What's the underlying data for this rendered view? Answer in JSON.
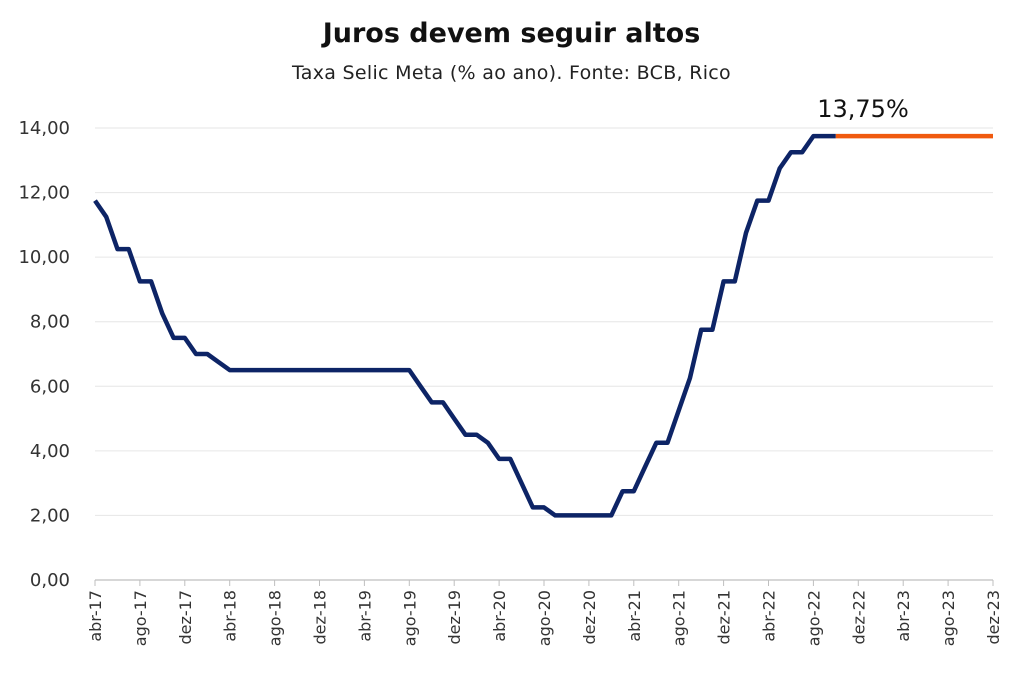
{
  "chart_data": {
    "type": "line",
    "title": "Juros devem seguir altos",
    "subtitle": "Taxa Selic Meta (% ao ano). Fonte: BCB, Rico",
    "ylim": [
      0,
      14
    ],
    "yticks": [
      "0,00",
      "2,00",
      "4,00",
      "6,00",
      "8,00",
      "10,00",
      "12,00",
      "14,00"
    ],
    "ytick_values": [
      0,
      2,
      4,
      6,
      8,
      10,
      12,
      14
    ],
    "xticks": [
      "abr-17",
      "ago-17",
      "dez-17",
      "abr-18",
      "ago-18",
      "dez-18",
      "abr-19",
      "ago-19",
      "dez-19",
      "abr-20",
      "ago-20",
      "dez-20",
      "abr-21",
      "ago-21",
      "dez-21",
      "abr-22",
      "ago-22",
      "dez-22",
      "abr-23",
      "ago-23",
      "dez-23"
    ],
    "grid": true,
    "annotation": "13,75%",
    "colors": {
      "historical": "#0d2466",
      "projection": "#f05a0f",
      "grid": "#e6e6e6",
      "axis": "#bfbfbf"
    },
    "series": [
      {
        "x": [
          "2017-04",
          "2017-05",
          "2017-06",
          "2017-07",
          "2017-08",
          "2017-09",
          "2017-10",
          "2017-11",
          "2017-12",
          "2018-01",
          "2018-02",
          "2018-03",
          "2018-04",
          "2018-05",
          "2018-06",
          "2018-07",
          "2018-08",
          "2018-09",
          "2018-10",
          "2018-11",
          "2018-12",
          "2019-01",
          "2019-02",
          "2019-03",
          "2019-04",
          "2019-05",
          "2019-06",
          "2019-07",
          "2019-08",
          "2019-09",
          "2019-10",
          "2019-11",
          "2019-12",
          "2020-01",
          "2020-02",
          "2020-03",
          "2020-04",
          "2020-05",
          "2020-06",
          "2020-07",
          "2020-08",
          "2020-09",
          "2020-10",
          "2020-11",
          "2020-12",
          "2021-01",
          "2021-02",
          "2021-03",
          "2021-04",
          "2021-05",
          "2021-06",
          "2021-07",
          "2021-08",
          "2021-09",
          "2021-10",
          "2021-11",
          "2021-12",
          "2022-01",
          "2022-02",
          "2022-03",
          "2022-04",
          "2022-05",
          "2022-06",
          "2022-07",
          "2022-08",
          "2022-09",
          "2022-10"
        ],
        "values": [
          11.75,
          11.25,
          10.25,
          10.25,
          9.25,
          9.25,
          8.25,
          7.5,
          7.5,
          7.0,
          7.0,
          6.75,
          6.5,
          6.5,
          6.5,
          6.5,
          6.5,
          6.5,
          6.5,
          6.5,
          6.5,
          6.5,
          6.5,
          6.5,
          6.5,
          6.5,
          6.5,
          6.5,
          6.5,
          6.0,
          5.5,
          5.5,
          5.0,
          4.5,
          4.5,
          4.25,
          3.75,
          3.75,
          3.0,
          2.25,
          2.25,
          2.0,
          2.0,
          2.0,
          2.0,
          2.0,
          2.0,
          2.75,
          2.75,
          3.5,
          4.25,
          4.25,
          5.25,
          6.25,
          7.75,
          7.75,
          9.25,
          9.25,
          10.75,
          11.75,
          11.75,
          12.75,
          13.25,
          13.25,
          13.75,
          13.75,
          13.75
        ]
      },
      {
        "x": [
          "2022-10",
          "2022-11",
          "2022-12",
          "2023-01",
          "2023-02",
          "2023-03",
          "2023-04",
          "2023-05",
          "2023-06",
          "2023-07",
          "2023-08",
          "2023-09",
          "2023-10",
          "2023-11",
          "2023-12"
        ],
        "values": [
          13.75,
          13.75,
          13.75,
          13.75,
          13.75,
          13.75,
          13.75,
          13.75,
          13.75,
          13.75,
          13.75,
          13.75,
          13.75,
          13.75,
          13.75
        ]
      }
    ]
  }
}
